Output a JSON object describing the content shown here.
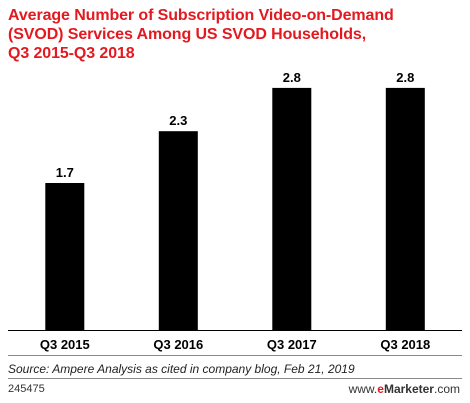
{
  "chart_data": {
    "type": "bar",
    "title": "Average Number of Subscription Video-on-Demand (SVOD) Services Among US SVOD Households, Q3 2015-Q3 2018",
    "title_lines": [
      "Average Number of Subscription Video-on-Demand",
      "(SVOD) Services Among US SVOD Households,",
      "Q3 2015-Q3 2018"
    ],
    "categories": [
      "Q3 2015",
      "Q3 2016",
      "Q3 2017",
      "Q3 2018"
    ],
    "values": [
      1.7,
      2.3,
      2.8,
      2.8
    ],
    "value_labels": [
      "1.7",
      "2.3",
      "2.8",
      "2.8"
    ],
    "xlabel": "",
    "ylabel": "",
    "ylim": [
      0,
      3.1
    ],
    "grid": false,
    "legend": "none",
    "colors": {
      "bar": "#000000",
      "title": "#e3191f",
      "axis": "#000000"
    }
  },
  "footer": {
    "source": "Source: Ampere Analysis as cited in company blog, Feb 21, 2019",
    "chart_id": "245475",
    "brand_prefix": "www.",
    "brand_e": "e",
    "brand_rest": "Marketer",
    "brand_suffix": ".com"
  }
}
